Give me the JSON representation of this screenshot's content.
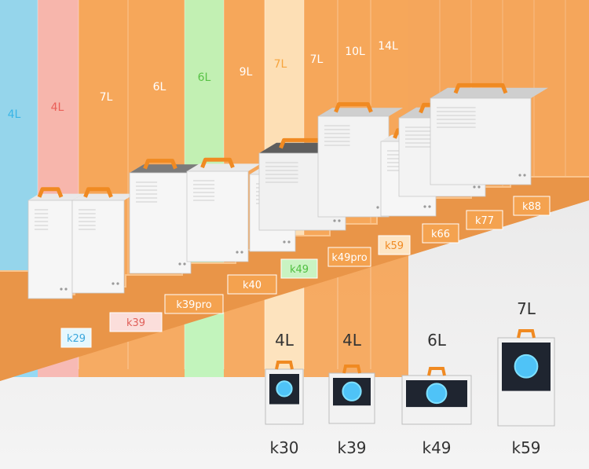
{
  "colors": {
    "orange_bg": "#f5a65b",
    "orange_dark": "#e99548",
    "floor_light": "#ecebeb",
    "case_white": "#f4f4f4",
    "case_side": "#d7d7d7",
    "case_gray": "#8d8d8d",
    "handle": "#f08a22",
    "label_text": "#ffffff"
  },
  "lineup": [
    {
      "model": "k29",
      "volume": "4L",
      "accent": "#8fd7f3",
      "tag": "#e6f7fd",
      "tag_text": "#3aa7dd",
      "vol_color": "#39b5e6",
      "finish": "white"
    },
    {
      "model": "k39",
      "volume": "4L",
      "accent": "#f7b6b1",
      "tag": "#fbdedb",
      "tag_text": "#e0605a",
      "vol_color": "#ea5f58",
      "finish": "white"
    },
    {
      "model": "k39pro",
      "volume": "7L",
      "accent": "#f5a65b",
      "tag": "#f4a24f",
      "tag_text": "#ffffff",
      "vol_color": "#ffffff",
      "finish": "white-dark-top"
    },
    {
      "model": "k40",
      "volume": "6L",
      "accent": "#f5a65b",
      "tag": "#f4a24f",
      "tag_text": "#ffffff",
      "vol_color": "#ffffff",
      "finish": "white"
    },
    {
      "model": "k49",
      "volume": "6L",
      "accent": "#bff3b8",
      "tag": "#c9f3c2",
      "tag_text": "#4fbf40",
      "vol_color": "#58c246",
      "finish": "white"
    },
    {
      "model": "k49pro",
      "volume": "9L",
      "accent": "#f5a65b",
      "tag": "#f4a24f",
      "tag_text": "#ffffff",
      "vol_color": "#ffffff",
      "finish": "dark"
    },
    {
      "model": "k59",
      "volume": "7L",
      "accent": "#fde2ba",
      "tag": "#fde5c4",
      "tag_text": "#f08a22",
      "vol_color": "#f7a43e",
      "finish": "gray"
    },
    {
      "model": "k66",
      "volume": "7L",
      "accent": "#f5a65b",
      "tag": "#f4a24f",
      "tag_text": "#ffffff",
      "vol_color": "#ffffff",
      "finish": "white"
    },
    {
      "model": "k77",
      "volume": "10L",
      "accent": "#f5a65b",
      "tag": "#f4a24f",
      "tag_text": "#ffffff",
      "vol_color": "#ffffff",
      "finish": "gray"
    },
    {
      "model": "k88",
      "volume": "14L",
      "accent": "#f5a65b",
      "tag": "#f4a24f",
      "tag_text": "#ffffff",
      "vol_color": "#ffffff",
      "finish": "gray"
    }
  ],
  "featured": [
    {
      "volume": "4L",
      "model": "k30",
      "icon": "rgb-fan-case-icon"
    },
    {
      "volume": "4L",
      "model": "k39",
      "icon": "cooler-case-icon"
    },
    {
      "volume": "6L",
      "model": "k49",
      "icon": "side-cooler-case-icon"
    },
    {
      "volume": "7L",
      "model": "k59",
      "icon": "gpu-case-icon"
    }
  ]
}
